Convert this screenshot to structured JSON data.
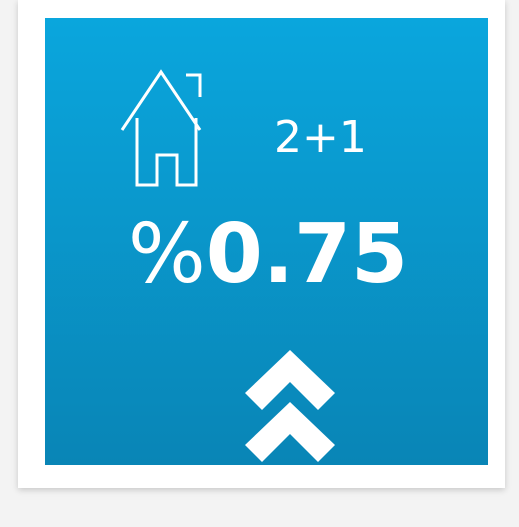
{
  "card": {
    "room": "2+1",
    "rate": {
      "symbol": "%",
      "value": 0.75
    }
  }
}
